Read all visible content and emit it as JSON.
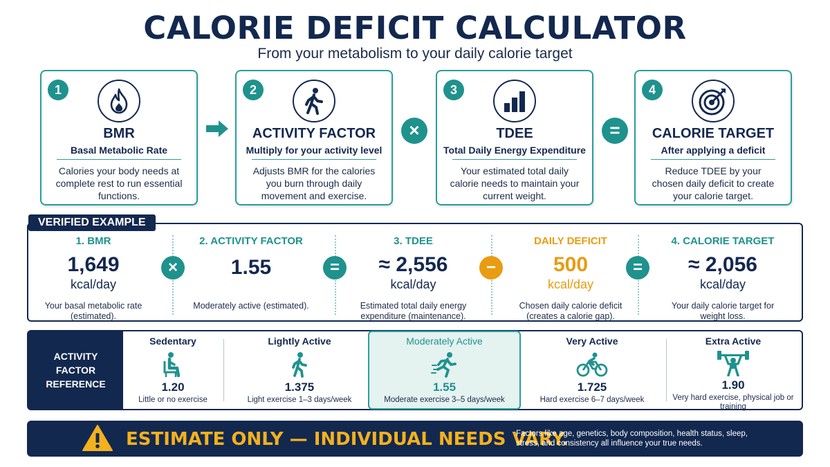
{
  "header": {
    "title": "CALORIE DEFICIT CALCULATOR",
    "subtitle": "From your metabolism to your daily calorie target"
  },
  "steps": [
    {
      "number": "1",
      "icon": "flame-icon",
      "title": "BMR",
      "subtitle": "Basal Metabolic Rate",
      "description": "Calories your body needs at complete rest to run essential functions."
    },
    {
      "number": "2",
      "icon": "walking-person-icon",
      "title": "ACTIVITY FACTOR",
      "subtitle": "Multiply for your activity level",
      "description": "Adjusts BMR for the calories you burn through daily movement and exercise."
    },
    {
      "number": "3",
      "icon": "bar-chart-icon",
      "title": "TDEE",
      "subtitle": "Total Daily Energy Expenditure",
      "description": "Your estimated total daily calorie needs to maintain your current weight."
    },
    {
      "number": "4",
      "icon": "target-icon",
      "title": "CALORIE TARGET",
      "subtitle": "After applying a deficit",
      "description": "Reduce TDEE by your chosen daily deficit to create your calorie target."
    }
  ],
  "operators": {
    "arrow": "arrow-right-icon",
    "multiply": "×",
    "equals": "=",
    "minus": "−"
  },
  "example": {
    "heading": "VERIFIED EXAMPLE",
    "columns": [
      {
        "label": "1. BMR",
        "value": "1,649",
        "unit": "kcal/day",
        "description": "Your basal metabolic rate (estimated)."
      },
      {
        "label": "2. ACTIVITY FACTOR",
        "value": "1.55",
        "unit": "",
        "description": "Moderately active (estimated)."
      },
      {
        "label": "3. TDEE",
        "value": "≈ 2,556",
        "unit": "kcal/day",
        "description": "Estimated total daily energy expenditure (maintenance)."
      },
      {
        "label": "DAILY DEFICIT",
        "value": "500",
        "unit": "kcal/day",
        "description": "Chosen daily calorie deficit (creates a calorie gap)."
      },
      {
        "label": "4. CALORIE TARGET",
        "value": "≈ 2,056",
        "unit": "kcal/day",
        "description": "Your daily calorie target for weight loss."
      }
    ]
  },
  "reference": {
    "heading": "ACTIVITY FACTOR REFERENCE",
    "levels": [
      {
        "name": "Sedentary",
        "icon": "seated-person-icon",
        "factor": "1.20",
        "description": "Little or no exercise",
        "selected": false
      },
      {
        "name": "Lightly Active",
        "icon": "walking-person-icon",
        "factor": "1.375",
        "description": "Light exercise 1–3 days/week",
        "selected": false
      },
      {
        "name": "Moderately Active",
        "icon": "running-person-icon",
        "factor": "1.55",
        "description": "Moderate exercise 3–5 days/week",
        "selected": true
      },
      {
        "name": "Very Active",
        "icon": "cyclist-icon",
        "factor": "1.725",
        "description": "Hard exercise 6–7 days/week",
        "selected": false
      },
      {
        "name": "Extra Active",
        "icon": "weightlifter-icon",
        "factor": "1.90",
        "description": "Very hard exercise, physical job or training",
        "selected": false
      }
    ]
  },
  "banner": {
    "icon": "warning-icon",
    "headline": "ESTIMATE ONLY — INDIVIDUAL NEEDS VARY.",
    "note": "Factors like age, genetics, body composition, health status, sleep, stress, and consistency all influence your true needs."
  },
  "colors": {
    "navy": "#13284f",
    "teal": "#1f928e",
    "orange": "#e89c12",
    "gold": "#f3b11e",
    "highlight": "#e4f2f0"
  }
}
